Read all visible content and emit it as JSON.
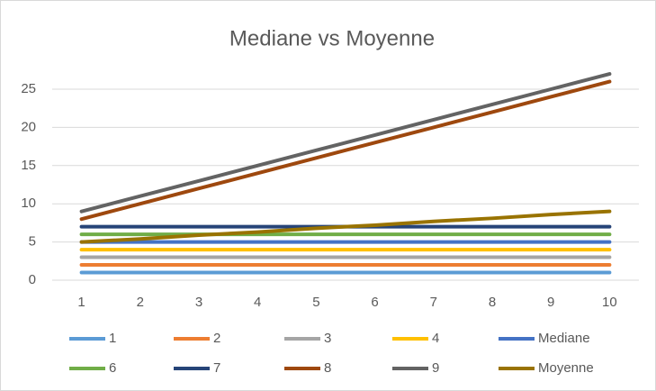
{
  "chart_data": {
    "type": "line",
    "title": "Mediane vs Moyenne",
    "x": [
      1,
      2,
      3,
      4,
      5,
      6,
      7,
      8,
      9,
      10
    ],
    "xlim": [
      0.5,
      10.5
    ],
    "xticks": [
      1,
      2,
      3,
      4,
      5,
      6,
      7,
      8,
      9,
      10
    ],
    "ylim": [
      0,
      28
    ],
    "yticks": [
      0,
      5,
      10,
      15,
      20,
      25
    ],
    "grid": true,
    "legend": "bottom",
    "series": [
      {
        "name": "1",
        "color": "#5b9bd5",
        "values": [
          1,
          1,
          1,
          1,
          1,
          1,
          1,
          1,
          1,
          1
        ]
      },
      {
        "name": "2",
        "color": "#ed7d31",
        "values": [
          2,
          2,
          2,
          2,
          2,
          2,
          2,
          2,
          2,
          2
        ]
      },
      {
        "name": "3",
        "color": "#a5a5a5",
        "values": [
          3,
          3,
          3,
          3,
          3,
          3,
          3,
          3,
          3,
          3
        ]
      },
      {
        "name": "4",
        "color": "#ffc000",
        "values": [
          4,
          4,
          4,
          4,
          4,
          4,
          4,
          4,
          4,
          4
        ]
      },
      {
        "name": "Mediane",
        "color": "#4472c4",
        "values": [
          5,
          5,
          5,
          5,
          5,
          5,
          5,
          5,
          5,
          5
        ]
      },
      {
        "name": "6",
        "color": "#70ad47",
        "values": [
          6,
          6,
          6,
          6,
          6,
          6,
          6,
          6,
          6,
          6
        ]
      },
      {
        "name": "7",
        "color": "#264478",
        "values": [
          7,
          7,
          7,
          7,
          7,
          7,
          7,
          7,
          7,
          7
        ]
      },
      {
        "name": "8",
        "color": "#9e480e",
        "values": [
          8,
          10,
          12,
          14,
          16,
          18,
          20,
          22,
          24,
          26
        ]
      },
      {
        "name": "9",
        "color": "#636363",
        "values": [
          9,
          11,
          13,
          15,
          17,
          19,
          21,
          23,
          25,
          27
        ]
      },
      {
        "name": "Moyenne",
        "color": "#997300",
        "values": [
          5,
          5.4,
          5.9,
          6.3,
          6.8,
          7.2,
          7.7,
          8.1,
          8.6,
          9
        ]
      }
    ]
  }
}
